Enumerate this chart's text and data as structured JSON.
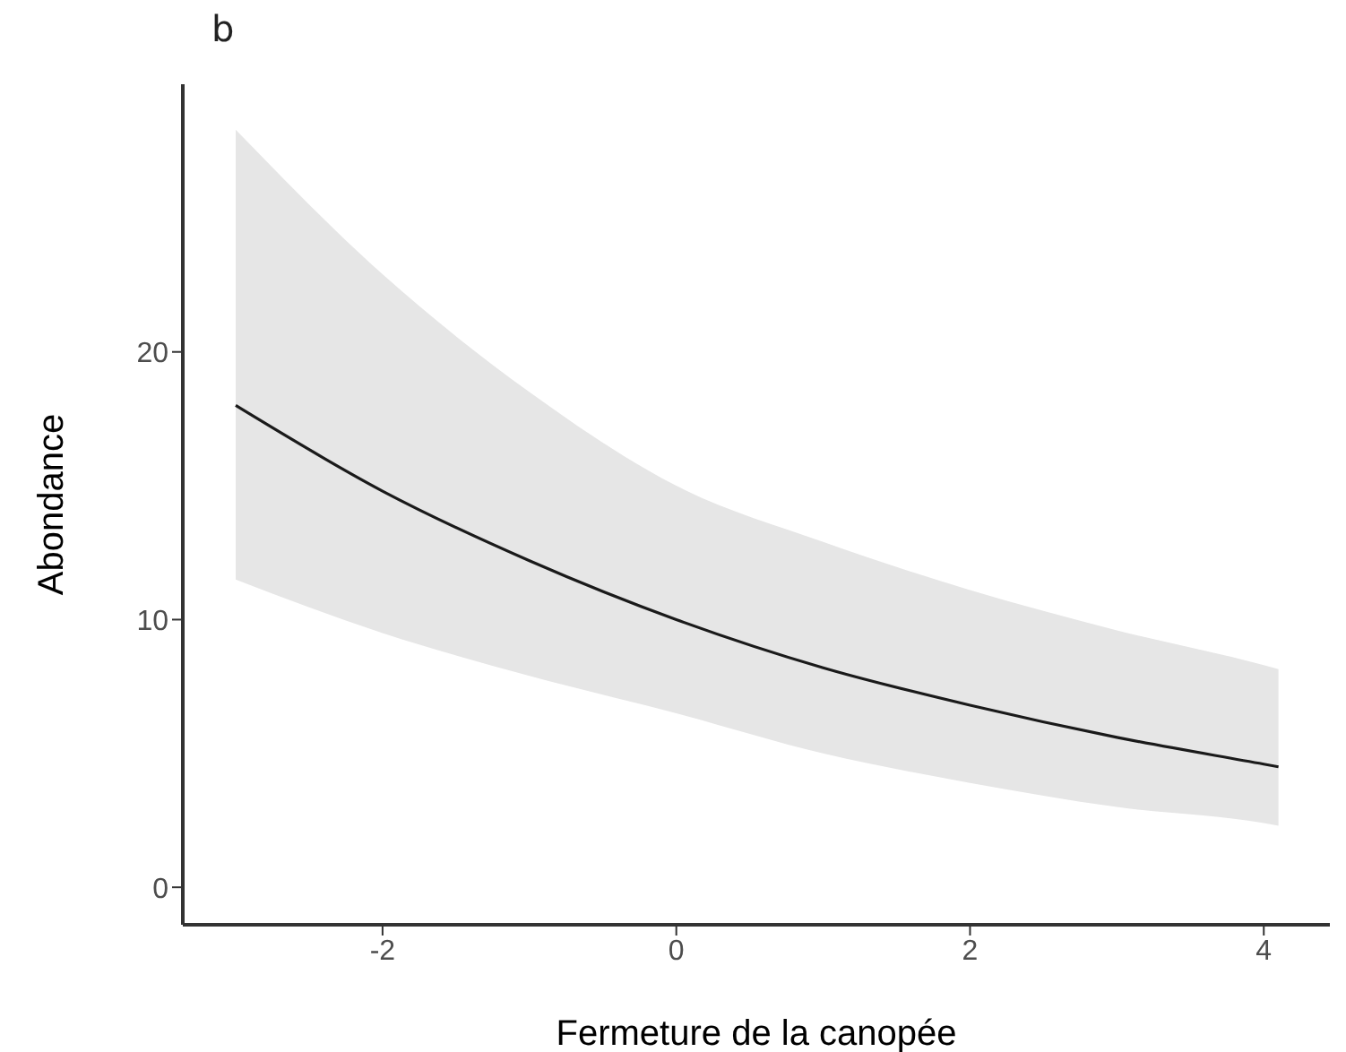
{
  "chart_data": {
    "type": "line",
    "title": "b",
    "xlabel": "Fermeture de la canopée",
    "ylabel": "Abondance",
    "x": [
      -3,
      -2,
      -1,
      0,
      1,
      2,
      3,
      4,
      4.1
    ],
    "series": [
      {
        "color": "#1a1a1a",
        "values": [
          18.0,
          14.8,
          12.2,
          10.0,
          8.2,
          6.8,
          5.6,
          4.6,
          4.5
        ],
        "lower": [
          11.5,
          9.5,
          7.9,
          6.5,
          5.0,
          3.9,
          3.0,
          2.4,
          2.3
        ],
        "upper": [
          28.3,
          22.9,
          18.5,
          15.0,
          12.9,
          11.1,
          9.6,
          8.3,
          8.15
        ]
      }
    ],
    "xlim": [
      -3.36,
      4.45
    ],
    "xticks": [
      -2,
      0,
      2,
      4
    ],
    "ylim": [
      -1.4,
      30
    ],
    "yticks": [
      0,
      10,
      20
    ],
    "grid": false,
    "marker": "none",
    "line_style": "solid"
  }
}
